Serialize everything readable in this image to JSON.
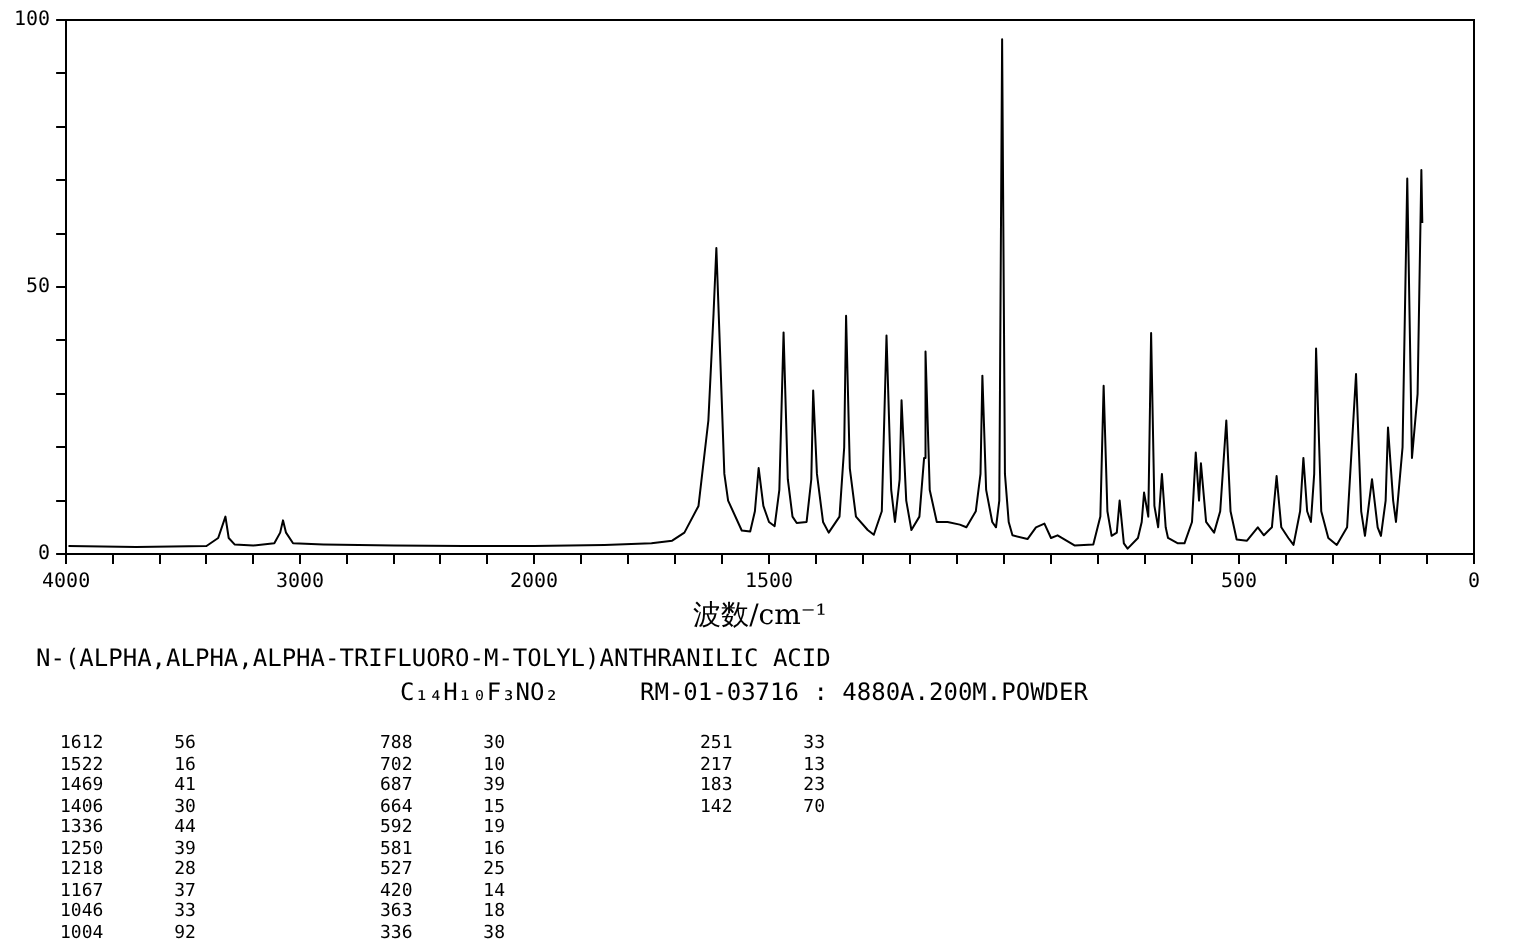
{
  "chart_data": [
    {
      "type": "line",
      "title": "N-(ALPHA,ALPHA,ALPHA-TRIFLUORO-M-TOLYL)ANTHRANILIC ACID",
      "subtitle": "C₁₄H₁₀F₃NO₂",
      "annotations": [
        "RM-01-03716 : 4880A.200M.POWDER",
        "1612 56",
        "1522 16",
        "1469 41",
        "1406 30",
        "1336 44",
        "1250 39",
        "1218 28",
        "1167 37",
        "1046 33",
        "1004 92",
        "788 30",
        "702 10",
        "687 39",
        "664 15",
        "592 19",
        "581 16",
        "527 25",
        "420 14",
        "363 18",
        "336 38",
        "251 33",
        "217 13",
        "183 23",
        "142 70"
      ],
      "xlim": [
        4000,
        2000
      ],
      "xticks": [
        4000,
        {
          "value": 3800,
          "label": null
        },
        {
          "value": 3600,
          "label": null
        },
        {
          "value": 3400,
          "label": null
        },
        {
          "value": 3200,
          "label": null
        },
        3000,
        {
          "value": 2800,
          "label": null
        },
        {
          "value": 2600,
          "label": null
        },
        {
          "value": 2400,
          "label": null
        },
        {
          "value": 2200,
          "label": null
        },
        2000
      ],
      "ylim": [
        0,
        100
      ],
      "yticks": [
        0,
        {
          "value": 10,
          "label": null
        },
        {
          "value": 20,
          "label": null
        },
        {
          "value": 30,
          "label": null
        },
        {
          "value": 40,
          "label": null
        },
        50,
        {
          "value": 60,
          "label": null
        },
        {
          "value": 70,
          "label": null
        },
        {
          "value": 80,
          "label": null
        },
        {
          "value": 90,
          "label": null
        },
        100
      ],
      "marker": "none",
      "line_style": "solid",
      "series": [
        {
          "color": "#000000",
          "x": [
            3990,
            3700,
            3400,
            3350,
            3319,
            3305,
            3280,
            3200,
            3110,
            3085,
            3073,
            3060,
            3030,
            2900,
            2600,
            2300,
            2000
          ],
          "values": [
            1.5,
            1.3,
            1.5,
            3,
            7,
            3,
            1.8,
            1.6,
            2,
            4,
            6.3,
            4,
            2,
            1.8,
            1.6,
            1.5,
            1.5
          ]
        }
      ]
    },
    {
      "type": "line",
      "xlabel": "波数/cm⁻¹",
      "tick_labels": "x",
      "xlim": [
        2000,
        0
      ],
      "xticks": [
        {
          "value": 1900,
          "label": null
        },
        {
          "value": 1800,
          "label": null
        },
        {
          "value": 1700,
          "label": null
        },
        {
          "value": 1600,
          "label": null
        },
        1500,
        {
          "value": 1400,
          "label": null
        },
        {
          "value": 1300,
          "label": null
        },
        {
          "value": 1200,
          "label": null
        },
        {
          "value": 1100,
          "label": null
        },
        {
          "value": 1000,
          "label": null
        },
        {
          "value": 900,
          "label": null
        },
        {
          "value": 800,
          "label": null
        },
        {
          "value": 700,
          "label": null
        },
        {
          "value": 600,
          "label": null
        },
        500,
        {
          "value": 400,
          "label": null
        },
        {
          "value": 300,
          "label": null
        },
        {
          "value": 200,
          "label": null
        },
        {
          "value": 100,
          "label": null
        },
        0
      ],
      "ylim": [
        0,
        100
      ],
      "marker": "none",
      "line_style": "solid",
      "series": [
        {
          "color": "#000000",
          "x": [
            2000,
            1850,
            1750,
            1706,
            1680,
            1650,
            1629,
            1618,
            1612,
            1605,
            1595,
            1587,
            1558,
            1540,
            1530,
            1522,
            1512,
            1500,
            1488,
            1478,
            1469,
            1460,
            1450,
            1441,
            1420,
            1410,
            1406,
            1398,
            1385,
            1373,
            1350,
            1340,
            1336,
            1328,
            1315,
            1290,
            1277,
            1260,
            1250,
            1240,
            1232,
            1222,
            1218,
            1208,
            1197,
            1180,
            1170,
            1167,
            1158,
            1143,
            1120,
            1094,
            1080,
            1060,
            1050,
            1046,
            1038,
            1025,
            1017,
            1010,
            1004,
            998,
            990,
            982,
            950,
            932,
            914,
            900,
            886,
            850,
            810,
            795,
            788,
            780,
            771,
            760,
            754,
            745,
            737,
            715,
            707,
            702,
            693,
            687,
            680,
            672,
            664,
            656,
            651,
            630,
            616,
            600,
            592,
            585,
            581,
            570,
            553,
            540,
            527,
            518,
            505,
            483,
            460,
            447,
            430,
            420,
            410,
            395,
            384,
            370,
            363,
            355,
            347,
            340,
            336,
            325,
            310,
            292,
            270,
            251,
            240,
            232,
            217,
            205,
            198,
            188,
            183,
            172,
            166,
            152,
            142,
            132,
            120,
            112,
            110
          ],
          "values": [
            1.5,
            1.7,
            2,
            2.5,
            4,
            9,
            25,
            45,
            57.3,
            40,
            15,
            10,
            4.4,
            4.2,
            8,
            16.1,
            9,
            6,
            5.2,
            12,
            41.5,
            14,
            7,
            5.8,
            6,
            14,
            30.6,
            15,
            6,
            4,
            7,
            20,
            44.6,
            16,
            7,
            4.5,
            3.6,
            8,
            40.9,
            12,
            6,
            14,
            28.8,
            10,
            4.5,
            7,
            18,
            37.9,
            12,
            6,
            6,
            5.5,
            5,
            8,
            15,
            33.4,
            12,
            6,
            5,
            10,
            96.4,
            15,
            6,
            3.5,
            2.8,
            5,
            5.7,
            3,
            3.5,
            1.6,
            1.8,
            7,
            31.5,
            8,
            3.4,
            4,
            10,
            2,
            1,
            3,
            6,
            11.5,
            7,
            41.4,
            9,
            5,
            15,
            5,
            3,
            2,
            2,
            6,
            19,
            10,
            17,
            6,
            4,
            8,
            25,
            8,
            2.7,
            2.5,
            5,
            3.5,
            5,
            14.6,
            5,
            3,
            1.7,
            8,
            18,
            8,
            6,
            15,
            38.5,
            8,
            3,
            1.7,
            5,
            33.7,
            8,
            3.4,
            14,
            5,
            3.4,
            10,
            23.7,
            10,
            6,
            20,
            70.3,
            18,
            30,
            71.9,
            62
          ]
        }
      ]
    }
  ]
}
